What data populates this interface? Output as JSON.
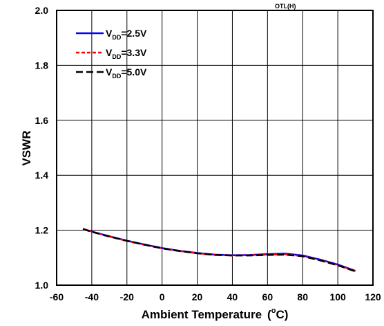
{
  "corner_label": "OTL(H)",
  "chart_data": {
    "type": "line",
    "title": "",
    "xlabel": "Ambient Temperature",
    "xlabel_unit_sup": "o",
    "xlabel_unit_close": "C)",
    "xlabel_unit_open": "(",
    "ylabel": "VSWR",
    "xlim": [
      -60,
      120
    ],
    "ylim": [
      1.0,
      2.0
    ],
    "xticks": [
      -60,
      -40,
      -20,
      0,
      20,
      40,
      60,
      80,
      100,
      120
    ],
    "yticks": [
      "1.0",
      "1.2",
      "1.4",
      "1.6",
      "1.8",
      "2.0"
    ],
    "grid": true,
    "legend_position": "top-left",
    "series": [
      {
        "name_main": "V",
        "name_sub": "DD",
        "name_rest": "=2.5V",
        "color": "#0000ff",
        "dash": "solid",
        "x": [
          -45,
          -40,
          -30,
          -20,
          -10,
          0,
          10,
          20,
          30,
          40,
          50,
          60,
          70,
          80,
          90,
          100,
          110
        ],
        "y": [
          1.205,
          1.195,
          1.178,
          1.162,
          1.148,
          1.135,
          1.125,
          1.117,
          1.111,
          1.109,
          1.11,
          1.113,
          1.115,
          1.108,
          1.093,
          1.075,
          1.052
        ]
      },
      {
        "name_main": "V",
        "name_sub": "DD",
        "name_rest": "=3.3V",
        "color": "#ff0000",
        "dash": "short",
        "x": [
          -45,
          -40,
          -30,
          -20,
          -10,
          0,
          10,
          20,
          30,
          40,
          50,
          60,
          70,
          80,
          90,
          100,
          110
        ],
        "y": [
          1.205,
          1.195,
          1.177,
          1.161,
          1.147,
          1.134,
          1.124,
          1.116,
          1.11,
          1.108,
          1.109,
          1.111,
          1.112,
          1.106,
          1.091,
          1.073,
          1.051
        ]
      },
      {
        "name_main": "V",
        "name_sub": "DD",
        "name_rest": "=5.0V",
        "color": "#000000",
        "dash": "long",
        "x": [
          -45,
          -40,
          -30,
          -20,
          -10,
          0,
          10,
          20,
          30,
          40,
          50,
          60,
          70,
          80,
          90,
          100,
          110
        ],
        "y": [
          1.204,
          1.194,
          1.177,
          1.161,
          1.147,
          1.134,
          1.124,
          1.116,
          1.11,
          1.108,
          1.108,
          1.11,
          1.111,
          1.105,
          1.09,
          1.072,
          1.05
        ]
      }
    ]
  }
}
